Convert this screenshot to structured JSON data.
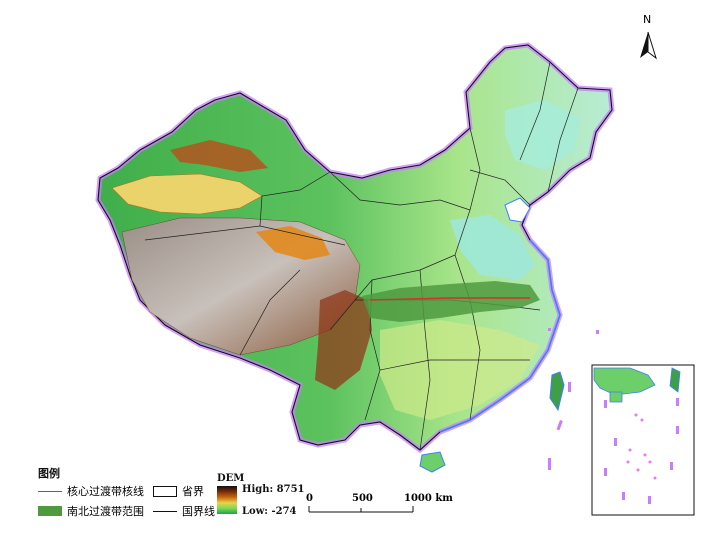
{
  "north_label": "N",
  "legend": {
    "title": "图例",
    "core_line": "核心过渡带核线",
    "province_border": "省界",
    "transition_zone": "南北过渡带范围",
    "national_border": "国界线"
  },
  "dem": {
    "title": "DEM",
    "high_label": "High: 8751",
    "low_label": "Low: -274"
  },
  "scale_bar": {
    "ticks": [
      "0",
      "500",
      "1000 km"
    ]
  },
  "colors": {
    "core_line": "#d0342c",
    "transition_zone": "#4f9a3f",
    "border_glow": "#c77dff",
    "coast": "#3b82f6"
  }
}
